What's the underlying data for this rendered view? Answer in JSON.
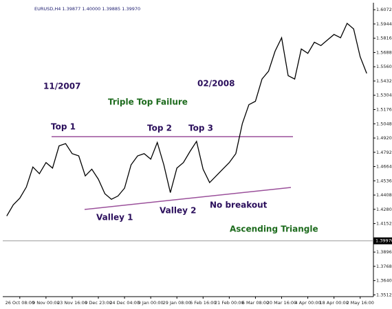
{
  "chart_data": {
    "type": "line",
    "title": "EURUSD,H4  1.39877  1.40000  1.39885  1.39970",
    "categories": [
      null,
      null,
      "26 Oct 08:00",
      null,
      null,
      null,
      "9 Nov 00:00",
      null,
      null,
      null,
      "23 Nov 16:00",
      null,
      null,
      null,
      "9 Dec 23:00",
      null,
      null,
      null,
      "24 Dec 04:00",
      null,
      null,
      null,
      "9 Jan 00:00",
      null,
      null,
      null,
      "29 Jan 08:00",
      null,
      null,
      null,
      "6 Feb 16:00",
      null,
      null,
      null,
      "21 Feb 00:00",
      null,
      null,
      null,
      "6 Mar 08:00",
      null,
      null,
      null,
      "20 Mar 16:00",
      null,
      null,
      null,
      "4 Apr 00:00",
      null,
      null,
      null,
      "18 Apr 00:00",
      null,
      null,
      null,
      "2 May 16:00",
      null
    ],
    "series": [
      {
        "name": "EURUSD,H4",
        "color": "#000000",
        "values": [
          1.422,
          1.432,
          1.438,
          1.448,
          1.466,
          1.46,
          1.47,
          1.465,
          1.485,
          1.487,
          1.478,
          1.476,
          1.458,
          1.464,
          1.455,
          1.442,
          1.437,
          1.44,
          1.447,
          1.468,
          1.476,
          1.478,
          1.473,
          1.488,
          1.468,
          1.443,
          1.465,
          1.47,
          1.48,
          1.489,
          1.464,
          1.452,
          1.458,
          1.464,
          1.47,
          1.478,
          1.505,
          1.522,
          1.525,
          1.545,
          1.552,
          1.57,
          1.582,
          1.548,
          1.545,
          1.572,
          1.568,
          1.578,
          1.575,
          1.58,
          1.585,
          1.582,
          1.595,
          1.59,
          1.565,
          1.55
        ]
      }
    ],
    "ylim": [
      1.3496,
      1.611
    ],
    "yticks": [
      {
        "value": 1.6072,
        "label": "1.60720"
      },
      {
        "value": 1.5944,
        "label": "1.59440"
      },
      {
        "value": 1.5816,
        "label": "1.58160"
      },
      {
        "value": 1.5688,
        "label": "1.56880"
      },
      {
        "value": 1.556,
        "label": "1.55600"
      },
      {
        "value": 1.5432,
        "label": "1.54320"
      },
      {
        "value": 1.5304,
        "label": "1.53040"
      },
      {
        "value": 1.5176,
        "label": "1.51760"
      },
      {
        "value": 1.5048,
        "label": "1.50480"
      },
      {
        "value": 1.492,
        "label": "1.49200"
      },
      {
        "value": 1.4792,
        "label": "1.47920"
      },
      {
        "value": 1.4664,
        "label": "1.46640"
      },
      {
        "value": 1.4536,
        "label": "1.45360"
      },
      {
        "value": 1.4408,
        "label": "1.44080"
      },
      {
        "value": 1.428,
        "label": "1.42800"
      },
      {
        "value": 1.4152,
        "label": "1.41520"
      },
      {
        "value": 1.3896,
        "label": "1.38960"
      },
      {
        "value": 1.3768,
        "label": "1.37680"
      },
      {
        "value": 1.364,
        "label": "1.36400"
      },
      {
        "value": 1.3512,
        "label": "1.35120"
      }
    ],
    "current_price": {
      "value": 1.3997,
      "label": "1.39970"
    },
    "annotations": [
      "11/2007",
      "02/2008",
      "Triple Top Failure",
      "Top 1",
      "Top 2",
      "Top 3",
      "Valley 1",
      "Valley 2",
      "No breakout",
      "Ascending Triangle"
    ]
  }
}
